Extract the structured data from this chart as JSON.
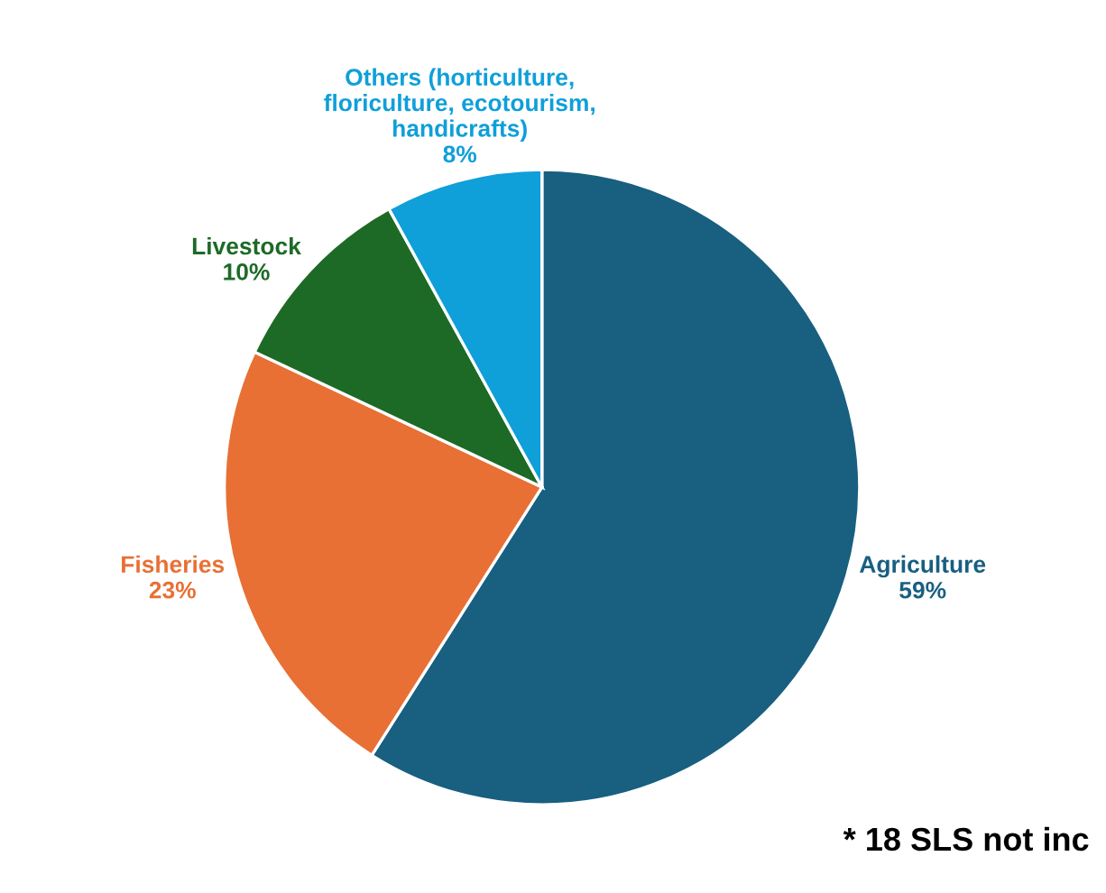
{
  "chart_data": {
    "type": "pie",
    "categories": [
      "Agriculture",
      "Fisheries",
      "Livestock",
      "Others (horticulture,\nfloriculture, ecotourism,\nhandicrafts)"
    ],
    "values": [
      59,
      23,
      10,
      8
    ],
    "value_labels": [
      "59%",
      "23%",
      "10%",
      "8%"
    ],
    "colors": [
      "#185f80",
      "#e87035",
      "#1d6a27",
      "#0f9fd9"
    ],
    "annotations": [
      "* 18 SLS not inc"
    ]
  }
}
